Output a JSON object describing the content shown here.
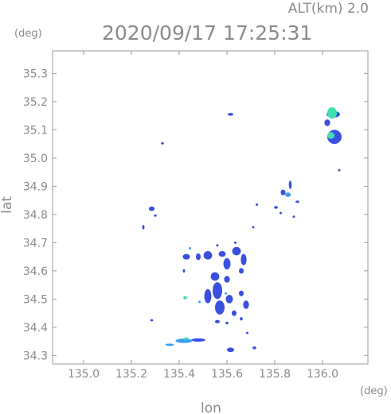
{
  "header": {
    "altitude_label": "ALT(km)  2.0",
    "datetime": "2020/09/17 17:25:31",
    "y_unit": "(deg)",
    "x_unit": "(deg)"
  },
  "chart_data": {
    "type": "heatmap",
    "title": "2020/09/17 17:25:31",
    "subtitle": "ALT(km)  2.0",
    "xlabel": "lon",
    "ylabel": "lat",
    "x_unit": "(deg)",
    "y_unit": "(deg)",
    "xlim": [
      134.87,
      136.19
    ],
    "ylim": [
      34.27,
      35.38
    ],
    "xticks": [
      135.0,
      135.2,
      135.4,
      135.6,
      135.8,
      136.0
    ],
    "xtick_labels": [
      "135.0",
      "135.2",
      "135.4",
      "135.6",
      "135.8",
      "136.0"
    ],
    "yticks": [
      34.3,
      34.4,
      34.5,
      34.6,
      34.7,
      34.8,
      34.9,
      35.0,
      35.1,
      35.2,
      35.3
    ],
    "ytick_labels": [
      "34.3",
      "34.4",
      "34.5",
      "34.6",
      "34.7",
      "34.8",
      "34.9",
      "35.0",
      "35.1",
      "35.2",
      "35.3"
    ],
    "grid": false,
    "colors": {
      "weak": "#3a4fe0",
      "medium": "#3aa0f0",
      "strong": "#3fe0b0"
    },
    "echoes": [
      {
        "lon": 135.615,
        "lat": 35.155,
        "rx": 0.012,
        "ry": 0.005,
        "level": "weak"
      },
      {
        "lon": 135.33,
        "lat": 35.052,
        "rx": 0.006,
        "ry": 0.004,
        "level": "weak"
      },
      {
        "lon": 136.04,
        "lat": 35.16,
        "rx": 0.02,
        "ry": 0.02,
        "level": "strong"
      },
      {
        "lon": 136.045,
        "lat": 35.155,
        "rx": 0.028,
        "ry": 0.012,
        "level": "weak"
      },
      {
        "lon": 136.05,
        "lat": 35.075,
        "rx": 0.03,
        "ry": 0.025,
        "level": "weak"
      },
      {
        "lon": 136.035,
        "lat": 35.08,
        "rx": 0.015,
        "ry": 0.012,
        "level": "strong"
      },
      {
        "lon": 136.02,
        "lat": 35.125,
        "rx": 0.012,
        "ry": 0.012,
        "level": "weak"
      },
      {
        "lon": 136.07,
        "lat": 34.957,
        "rx": 0.003,
        "ry": 0.003,
        "level": "weak"
      },
      {
        "lon": 135.865,
        "lat": 34.905,
        "rx": 0.006,
        "ry": 0.015,
        "level": "weak"
      },
      {
        "lon": 135.855,
        "lat": 34.87,
        "rx": 0.012,
        "ry": 0.008,
        "level": "medium"
      },
      {
        "lon": 135.835,
        "lat": 34.878,
        "rx": 0.01,
        "ry": 0.01,
        "level": "weak"
      },
      {
        "lon": 135.895,
        "lat": 34.845,
        "rx": 0.008,
        "ry": 0.004,
        "level": "weak"
      },
      {
        "lon": 135.805,
        "lat": 34.825,
        "rx": 0.008,
        "ry": 0.005,
        "level": "weak"
      },
      {
        "lon": 135.725,
        "lat": 34.835,
        "rx": 0.004,
        "ry": 0.004,
        "level": "weak"
      },
      {
        "lon": 135.825,
        "lat": 34.805,
        "rx": 0.004,
        "ry": 0.004,
        "level": "weak"
      },
      {
        "lon": 135.88,
        "lat": 34.792,
        "rx": 0.004,
        "ry": 0.004,
        "level": "weak"
      },
      {
        "lon": 135.285,
        "lat": 34.82,
        "rx": 0.012,
        "ry": 0.008,
        "level": "weak"
      },
      {
        "lon": 135.3,
        "lat": 34.796,
        "rx": 0.006,
        "ry": 0.004,
        "level": "weak"
      },
      {
        "lon": 135.25,
        "lat": 34.755,
        "rx": 0.004,
        "ry": 0.008,
        "level": "weak"
      },
      {
        "lon": 135.71,
        "lat": 34.755,
        "rx": 0.004,
        "ry": 0.004,
        "level": "weak"
      },
      {
        "lon": 135.635,
        "lat": 34.7,
        "rx": 0.004,
        "ry": 0.004,
        "level": "weak"
      },
      {
        "lon": 135.56,
        "lat": 34.69,
        "rx": 0.004,
        "ry": 0.004,
        "level": "weak"
      },
      {
        "lon": 135.445,
        "lat": 34.68,
        "rx": 0.004,
        "ry": 0.004,
        "level": "medium"
      },
      {
        "lon": 135.43,
        "lat": 34.65,
        "rx": 0.015,
        "ry": 0.01,
        "level": "weak"
      },
      {
        "lon": 135.48,
        "lat": 34.65,
        "rx": 0.01,
        "ry": 0.012,
        "level": "weak"
      },
      {
        "lon": 135.52,
        "lat": 34.655,
        "rx": 0.018,
        "ry": 0.015,
        "level": "weak"
      },
      {
        "lon": 135.58,
        "lat": 34.66,
        "rx": 0.015,
        "ry": 0.01,
        "level": "weak"
      },
      {
        "lon": 135.6,
        "lat": 34.625,
        "rx": 0.015,
        "ry": 0.02,
        "level": "weak"
      },
      {
        "lon": 135.64,
        "lat": 34.67,
        "rx": 0.018,
        "ry": 0.015,
        "level": "weak"
      },
      {
        "lon": 135.67,
        "lat": 34.64,
        "rx": 0.012,
        "ry": 0.02,
        "level": "weak"
      },
      {
        "lon": 135.66,
        "lat": 34.6,
        "rx": 0.01,
        "ry": 0.01,
        "level": "weak"
      },
      {
        "lon": 135.42,
        "lat": 34.6,
        "rx": 0.004,
        "ry": 0.006,
        "level": "weak"
      },
      {
        "lon": 135.55,
        "lat": 34.58,
        "rx": 0.018,
        "ry": 0.015,
        "level": "weak"
      },
      {
        "lon": 135.6,
        "lat": 34.57,
        "rx": 0.012,
        "ry": 0.012,
        "level": "weak"
      },
      {
        "lon": 135.56,
        "lat": 34.53,
        "rx": 0.02,
        "ry": 0.03,
        "level": "weak"
      },
      {
        "lon": 135.52,
        "lat": 34.51,
        "rx": 0.015,
        "ry": 0.025,
        "level": "weak"
      },
      {
        "lon": 135.57,
        "lat": 34.47,
        "rx": 0.02,
        "ry": 0.025,
        "level": "weak"
      },
      {
        "lon": 135.61,
        "lat": 34.5,
        "rx": 0.015,
        "ry": 0.015,
        "level": "weak"
      },
      {
        "lon": 135.66,
        "lat": 34.52,
        "rx": 0.01,
        "ry": 0.01,
        "level": "weak"
      },
      {
        "lon": 135.68,
        "lat": 34.48,
        "rx": 0.012,
        "ry": 0.015,
        "level": "weak"
      },
      {
        "lon": 135.63,
        "lat": 34.45,
        "rx": 0.01,
        "ry": 0.01,
        "level": "weak"
      },
      {
        "lon": 135.595,
        "lat": 34.52,
        "rx": 0.004,
        "ry": 0.004,
        "level": "medium"
      },
      {
        "lon": 135.485,
        "lat": 34.49,
        "rx": 0.004,
        "ry": 0.004,
        "level": "medium"
      },
      {
        "lon": 135.425,
        "lat": 34.505,
        "rx": 0.008,
        "ry": 0.006,
        "level": "strong"
      },
      {
        "lon": 135.56,
        "lat": 34.42,
        "rx": 0.01,
        "ry": 0.006,
        "level": "weak"
      },
      {
        "lon": 135.6,
        "lat": 34.415,
        "rx": 0.006,
        "ry": 0.005,
        "level": "weak"
      },
      {
        "lon": 135.66,
        "lat": 34.43,
        "rx": 0.006,
        "ry": 0.006,
        "level": "weak"
      },
      {
        "lon": 135.285,
        "lat": 34.425,
        "rx": 0.006,
        "ry": 0.004,
        "level": "weak"
      },
      {
        "lon": 135.36,
        "lat": 34.338,
        "rx": 0.018,
        "ry": 0.004,
        "level": "medium"
      },
      {
        "lon": 135.42,
        "lat": 34.352,
        "rx": 0.035,
        "ry": 0.008,
        "level": "medium"
      },
      {
        "lon": 135.48,
        "lat": 34.355,
        "rx": 0.03,
        "ry": 0.006,
        "level": "weak"
      },
      {
        "lon": 135.43,
        "lat": 34.36,
        "rx": 0.01,
        "ry": 0.004,
        "level": "strong"
      },
      {
        "lon": 135.615,
        "lat": 34.32,
        "rx": 0.015,
        "ry": 0.008,
        "level": "weak"
      },
      {
        "lon": 135.715,
        "lat": 34.327,
        "rx": 0.008,
        "ry": 0.005,
        "level": "weak"
      },
      {
        "lon": 135.685,
        "lat": 34.38,
        "rx": 0.004,
        "ry": 0.004,
        "level": "weak"
      }
    ]
  }
}
